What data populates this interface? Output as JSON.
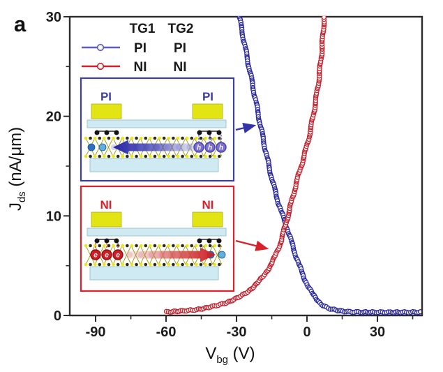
{
  "figure": {
    "panel_label": "a"
  },
  "legend": {
    "header": {
      "col1": "TG1",
      "col2": "TG2"
    },
    "rows": [
      {
        "name": "PI-PI",
        "tg1": "PI",
        "tg2": "PI",
        "color": "#5a5ec2"
      },
      {
        "name": "NI-NI",
        "tg1": "NI",
        "tg2": "NI",
        "color": "#d0202b"
      }
    ]
  },
  "axes": {
    "x": {
      "label_main": "V",
      "label_sub": "bg",
      "label_unit": " (V)",
      "range": [
        -101,
        49
      ],
      "major_ticks": [
        {
          "v": -90,
          "label": "-90"
        },
        {
          "v": -60,
          "label": "-60"
        },
        {
          "v": -30,
          "label": "-30"
        },
        {
          "v": 0,
          "label": "0"
        },
        {
          "v": 30,
          "label": "30"
        }
      ],
      "minor_ticks": [
        -75,
        -45,
        -15,
        15,
        45
      ]
    },
    "y": {
      "label_main": "J",
      "label_sub": "ds",
      "label_unit": " (nA/μm)",
      "range": [
        0,
        30
      ],
      "major_ticks": [
        {
          "v": 0,
          "label": "0"
        },
        {
          "v": 10,
          "label": "10"
        },
        {
          "v": 20,
          "label": "20"
        },
        {
          "v": 30,
          "label": "30"
        }
      ],
      "minor_ticks": [
        5,
        15,
        25
      ]
    }
  },
  "chart_data": {
    "type": "scatter",
    "marker": "open-circle",
    "xlabel": "V_bg (V)",
    "ylabel": "J_ds (nA/um)",
    "xlim": [
      -101,
      49
    ],
    "ylim": [
      0,
      30
    ],
    "grid": false,
    "legend_position": "top-left-inside",
    "series": [
      {
        "name": "PI-PI",
        "color": "#2a2a9c",
        "points": [
          [
            -28.8,
            30
          ],
          [
            -26,
            26.5
          ],
          [
            -23,
            23
          ],
          [
            -20,
            19.3
          ],
          [
            -17,
            15.8
          ],
          [
            -14,
            12.8
          ],
          [
            -11,
            10.4
          ],
          [
            -9,
            9.2
          ],
          [
            -6,
            6.9
          ],
          [
            -3,
            4.8
          ],
          [
            0,
            3.1
          ],
          [
            3,
            1.9
          ],
          [
            6,
            1.15
          ],
          [
            9,
            0.7
          ],
          [
            13,
            0.5
          ],
          [
            17,
            0.38
          ],
          [
            22,
            0.33
          ],
          [
            30,
            0.32
          ],
          [
            40,
            0.32
          ],
          [
            48.5,
            0.33
          ]
        ]
      },
      {
        "name": "NI-NI",
        "color": "#c2232e",
        "points": [
          [
            -60,
            0.35
          ],
          [
            -53,
            0.45
          ],
          [
            -46,
            0.6
          ],
          [
            -40,
            0.9
          ],
          [
            -34,
            1.3
          ],
          [
            -29,
            1.8
          ],
          [
            -24,
            2.6
          ],
          [
            -20,
            3.5
          ],
          [
            -16,
            4.8
          ],
          [
            -13,
            6.2
          ],
          [
            -11,
            7.5
          ],
          [
            -9,
            9.2
          ],
          [
            -7,
            11
          ],
          [
            -5,
            12.9
          ],
          [
            -3,
            14.6
          ],
          [
            -1,
            16.2
          ],
          [
            1,
            18
          ],
          [
            3,
            20.5
          ],
          [
            5,
            23.5
          ],
          [
            6.5,
            27
          ],
          [
            7.3,
            30
          ]
        ]
      }
    ],
    "crossing_point": [
      -9,
      9.2
    ]
  },
  "insets": [
    {
      "name": "PI-PI device schematic",
      "gate_label": "PI",
      "carrier_symbol": "h",
      "border_color": "#3c3f9e",
      "label_color": "#3c3f9e",
      "arrow_color": "#2525a5",
      "arrow_direction": "left"
    },
    {
      "name": "NI-NI device schematic",
      "gate_label": "NI",
      "carrier_symbol": "e",
      "border_color": "#e02028",
      "label_color": "#d6212a",
      "arrow_color": "#cf1d24",
      "arrow_direction": "right"
    }
  ]
}
